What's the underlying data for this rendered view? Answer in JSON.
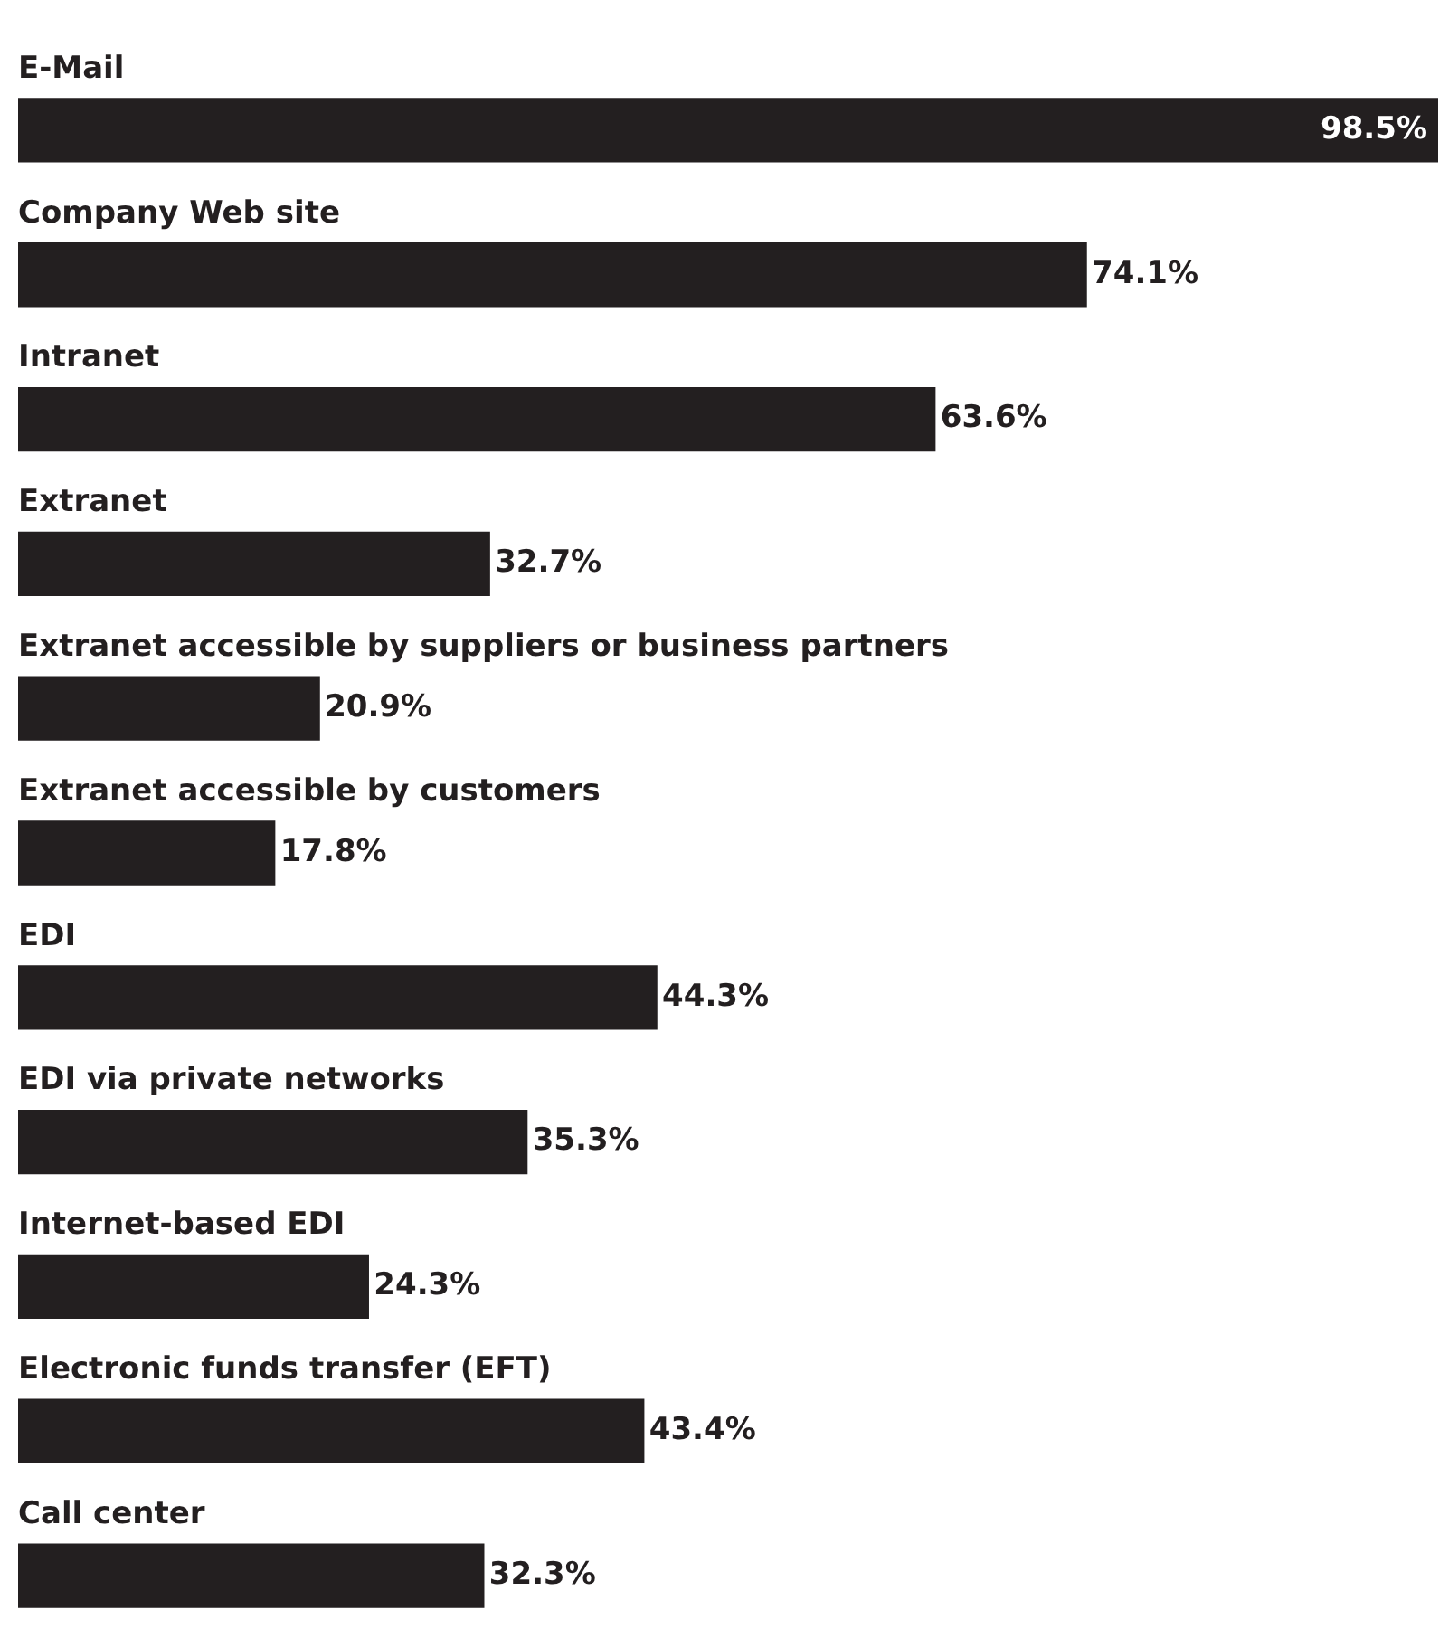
{
  "chart_data": {
    "type": "bar",
    "orientation": "horizontal",
    "categories": [
      "E-Mail",
      "Company Web site",
      "Intranet",
      "Extranet",
      "Extranet accessible by suppliers or business partners",
      "Extranet accessible by customers",
      "EDI",
      "EDI via private networks",
      "Internet-based EDI",
      "Electronic funds transfer (EFT)",
      "Call center"
    ],
    "values": [
      98.5,
      74.1,
      63.6,
      32.7,
      20.9,
      17.8,
      44.3,
      35.3,
      24.3,
      43.4,
      32.3
    ],
    "value_labels": [
      "98.5%",
      "74.1%",
      "63.6%",
      "32.7%",
      "20.9%",
      "17.8%",
      "44.3%",
      "35.3%",
      "24.3%",
      "43.4%",
      "32.3%"
    ],
    "color": "#231f20",
    "xlim": [
      0,
      98.5
    ],
    "tick_labels": false,
    "legend": false
  }
}
